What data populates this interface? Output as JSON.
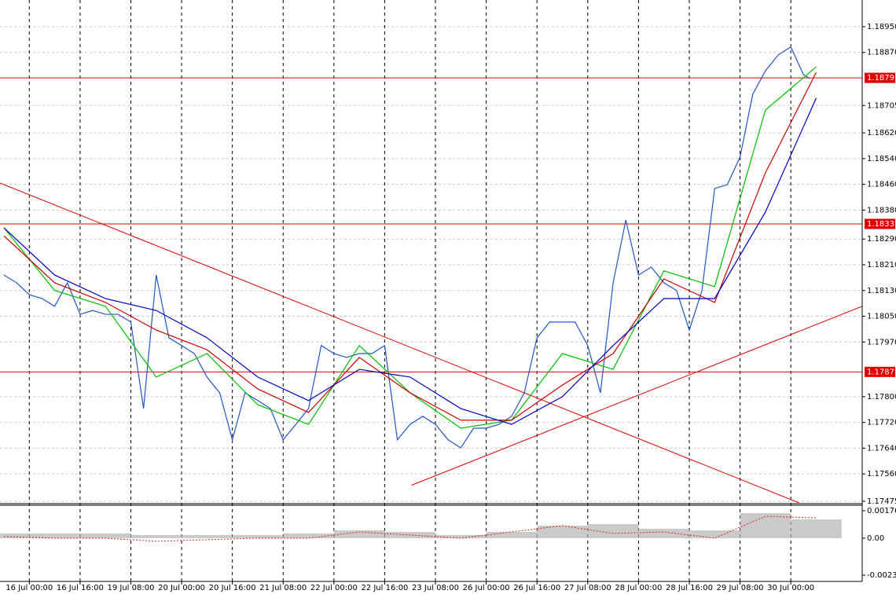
{
  "chart_data": [
    {
      "type": "line",
      "xlim": [
        -1.24,
        270.5
      ],
      "ylim": [
        1.1747,
        1.19033
      ],
      "grid": true,
      "xticks": [
        {
          "value": 8,
          "label": "16 Jul 00:00"
        },
        {
          "value": 24,
          "label": "16 Jul 16:00"
        },
        {
          "value": 40,
          "label": "19 Jul 08:00"
        },
        {
          "value": 56,
          "label": "20 Jul 00:00"
        },
        {
          "value": 72,
          "label": "20 Jul 16:00"
        },
        {
          "value": 88,
          "label": "21 Jul 08:00"
        },
        {
          "value": 104,
          "label": "22 Jul 00:00"
        },
        {
          "value": 120,
          "label": "22 Jul 16:00"
        },
        {
          "value": 136,
          "label": "23 Jul 08:00"
        },
        {
          "value": 152,
          "label": "26 Jul 00:00"
        },
        {
          "value": 168,
          "label": "26 Jul 16:00"
        },
        {
          "value": 184,
          "label": "27 Jul 08:00"
        },
        {
          "value": 200,
          "label": "28 Jul 00:00"
        },
        {
          "value": 216,
          "label": "28 Jul 16:00"
        },
        {
          "value": 232,
          "label": "29 Jul 08:00"
        },
        {
          "value": 248,
          "label": "30 Jul 00:00"
        }
      ],
      "yticks": [
        {
          "value": 1.1895,
          "label": "1.18950"
        },
        {
          "value": 1.1887,
          "label": "1.18870"
        },
        {
          "value": 1.18705,
          "label": "1.18705"
        },
        {
          "value": 1.1862,
          "label": "1.18620"
        },
        {
          "value": 1.1854,
          "label": "1.18540"
        },
        {
          "value": 1.1846,
          "label": "1.18460"
        },
        {
          "value": 1.1838,
          "label": "1.18380"
        },
        {
          "value": 1.1829,
          "label": "1.18290"
        },
        {
          "value": 1.1821,
          "label": "1.18210"
        },
        {
          "value": 1.1813,
          "label": "1.18130"
        },
        {
          "value": 1.1805,
          "label": "1.18050"
        },
        {
          "value": 1.1797,
          "label": "1.17970"
        },
        {
          "value": 1.178,
          "label": "1.17800"
        },
        {
          "value": 1.1772,
          "label": "1.17720"
        },
        {
          "value": 1.1764,
          "label": "1.17640"
        },
        {
          "value": 1.1756,
          "label": "1.17560"
        },
        {
          "value": 1.17475,
          "label": "1.17475"
        }
      ],
      "series": [
        {
          "color": "#2255c4",
          "x": [
            0,
            4,
            8,
            12,
            16,
            20,
            24,
            28,
            32,
            36,
            40,
            44,
            48,
            52,
            56,
            60,
            64,
            68,
            72,
            76,
            80,
            84,
            88,
            92,
            96,
            100,
            104,
            108,
            112,
            116,
            120,
            124,
            128,
            132,
            136,
            140,
            144,
            148,
            152,
            156,
            160,
            164,
            168,
            172,
            176,
            180,
            184,
            188,
            192,
            196,
            200,
            204,
            208,
            212,
            216,
            220,
            224,
            228,
            232,
            236,
            240,
            244,
            248,
            252,
            254
          ],
          "values": [
            1.18178,
            1.18154,
            1.18117,
            1.18105,
            1.18081,
            1.18154,
            1.18056,
            1.18068,
            1.18056,
            1.18056,
            1.18032,
            1.17763,
            1.18178,
            1.17983,
            1.17959,
            1.17934,
            1.17861,
            1.17812,
            1.17666,
            1.17812,
            1.17788,
            1.17763,
            1.17666,
            1.17714,
            1.17763,
            1.17959,
            1.17934,
            1.17922,
            1.17934,
            1.17934,
            1.17959,
            1.17666,
            1.17714,
            1.17739,
            1.17714,
            1.17666,
            1.17641,
            1.17702,
            1.17702,
            1.17714,
            1.17739,
            1.17812,
            1.17983,
            1.18032,
            1.18032,
            1.18032,
            1.17959,
            1.17812,
            1.18154,
            1.18349,
            1.18178,
            1.18203,
            1.18154,
            1.1813,
            1.18007,
            1.1813,
            1.18447,
            1.18459,
            1.18545,
            1.1874,
            1.18813,
            1.18862,
            1.18887,
            1.18801,
            1.18789
          ]
        },
        {
          "color": "#00c000",
          "x": [
            0,
            16,
            32,
            48,
            64,
            80,
            96,
            112,
            128,
            144,
            160,
            176,
            192,
            208,
            224,
            240,
            256
          ],
          "values": [
            1.18325,
            1.1813,
            1.18081,
            1.17861,
            1.17934,
            1.17775,
            1.17714,
            1.17959,
            1.17812,
            1.17702,
            1.17727,
            1.17934,
            1.17885,
            1.18191,
            1.18142,
            1.18691,
            1.18825
          ]
        },
        {
          "color": "#cc0000",
          "x": [
            0,
            16,
            32,
            48,
            64,
            80,
            96,
            112,
            128,
            144,
            160,
            176,
            192,
            208,
            224,
            240,
            256
          ],
          "values": [
            1.183,
            1.18154,
            1.18093,
            1.18007,
            1.17946,
            1.17824,
            1.17751,
            1.17922,
            1.17812,
            1.17727,
            1.17727,
            1.17836,
            1.17934,
            1.18166,
            1.18093,
            1.18496,
            1.18808
          ]
        },
        {
          "color": "#0000c0",
          "x": [
            0,
            16,
            32,
            48,
            64,
            80,
            96,
            112,
            128,
            144,
            160,
            176,
            192,
            208,
            224,
            240,
            256
          ],
          "values": [
            1.18325,
            1.18178,
            1.18105,
            1.18068,
            1.17983,
            1.17861,
            1.17788,
            1.17885,
            1.17861,
            1.17763,
            1.17714,
            1.178,
            1.17959,
            1.18105,
            1.18105,
            1.18374,
            1.18728
          ]
        }
      ],
      "levels": [
        1.18791,
        1.18337,
        1.17877
      ],
      "level_color": "#e00000",
      "trend_lines": [
        {
          "x": [
            -1.24,
            250.6
          ],
          "values": [
            1.18464,
            1.1747
          ]
        },
        {
          "x": [
            128.5,
            270.5
          ],
          "values": [
            1.17525,
            1.18081
          ]
        }
      ]
    },
    {
      "type": "bar",
      "x": [
        0,
        16,
        32,
        48,
        64,
        80,
        96,
        112,
        128,
        144,
        160,
        176,
        192,
        208,
        224,
        240,
        256
      ],
      "ylim": [
        -0.00277,
        0.00211
      ],
      "yticks": [
        0.00176,
        {
          "value": 0,
          "label": "0.00"
        },
        -0.00237
      ],
      "series": [
        {
          "type": "bar",
          "color": "#b4b4b4",
          "values": [
            0.0003,
            0.0003,
            0.0003,
            0.0002,
            0.0002,
            0.0002,
            0.0003,
            0.0005,
            0.0004,
            0.0002,
            0.0004,
            0.0008,
            0.0009,
            0.0006,
            0.0005,
            0.0016,
            0.0012
          ]
        },
        {
          "type": "line",
          "color": "#e02020",
          "values": [
            0.0001,
            0.0,
            0.0,
            -0.0002,
            -0.0001,
            0.0,
            0.0,
            0.0004,
            0.0002,
            0.0,
            0.0004,
            0.0008,
            0.0003,
            0.0004,
            0.0,
            0.0014,
            0.0013
          ]
        }
      ]
    }
  ]
}
